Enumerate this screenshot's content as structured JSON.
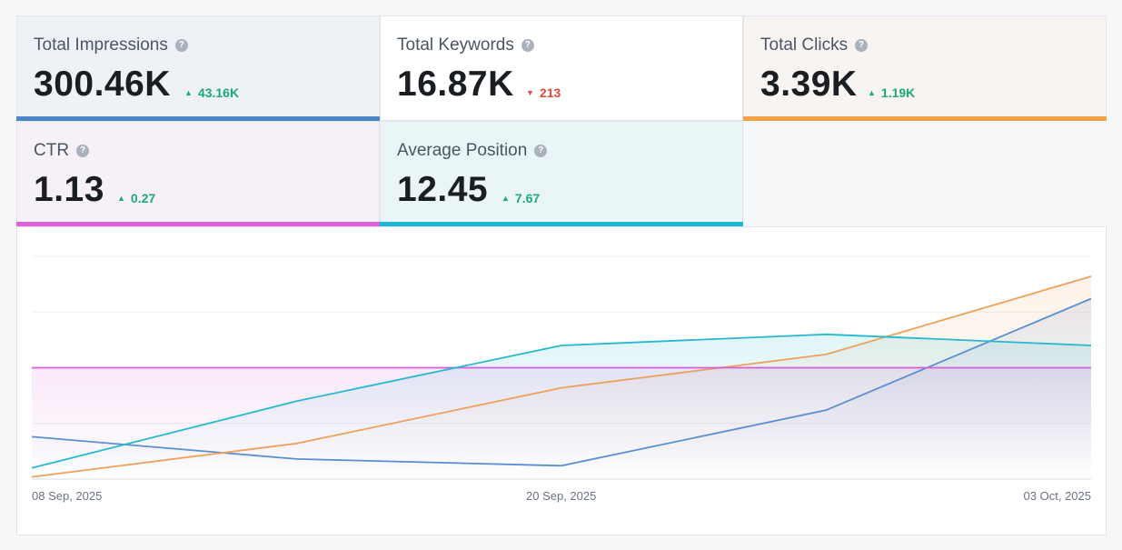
{
  "metrics": [
    {
      "label": "Total Impressions",
      "value": "300.46K",
      "delta": "43.16K",
      "direction": "up",
      "color": "#4a86c8",
      "bg": "#eef2f7"
    },
    {
      "label": "Total Keywords",
      "value": "16.87K",
      "delta": "213",
      "direction": "down",
      "color": "#ffffff",
      "bg": "#ffffff"
    },
    {
      "label": "Total Clicks",
      "value": "3.39K",
      "delta": "1.19K",
      "direction": "up",
      "color": "#f5a047",
      "bg": "#f7f4f1"
    },
    {
      "label": "CTR",
      "value": "1.13",
      "delta": "0.27",
      "direction": "up",
      "color": "#e060d8",
      "bg": "#f6f1f6"
    },
    {
      "label": "Average Position",
      "value": "12.45",
      "delta": "7.67",
      "direction": "up",
      "color": "#1eb6d4",
      "bg": "#eaf5f7"
    }
  ],
  "help_glyph": "?",
  "up_glyph": "▲",
  "down_glyph": "▼",
  "chart_data": {
    "type": "line",
    "x_tick_labels": [
      "08 Sep, 2025",
      "20 Sep, 2025",
      "03 Oct, 2025"
    ],
    "grid": true,
    "series": [
      {
        "metric": "Total Impressions",
        "color": "#5b8fd1",
        "values": [
          0.19,
          0.09,
          0.06,
          0.31,
          0.81
        ]
      },
      {
        "metric": "Total Clicks",
        "color": "#eea15b",
        "values": [
          0.01,
          0.16,
          0.41,
          0.56,
          0.91
        ]
      },
      {
        "metric": "CTR",
        "color": "#d75ed6",
        "values": [
          0.5,
          0.5,
          0.5,
          0.5,
          0.5
        ]
      },
      {
        "metric": "Average Position",
        "color": "#27b9cf",
        "values": [
          0.05,
          0.35,
          0.6,
          0.65,
          0.6
        ]
      }
    ]
  }
}
